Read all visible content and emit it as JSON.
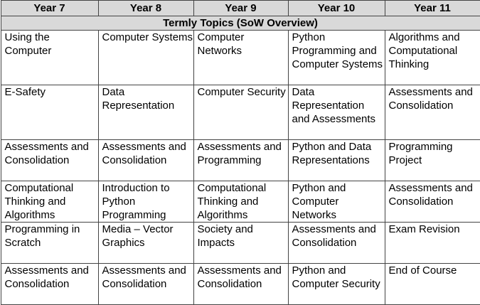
{
  "headers": [
    "Year 7",
    "Year 8",
    "Year 9",
    "Year 10",
    "Year 11"
  ],
  "subtitle": "Termly Topics (SoW Overview)",
  "rows": [
    [
      "Using the Computer",
      "Computer Systems",
      "Computer Networks",
      "Python Programming and Computer Systems",
      "Algorithms and Computational Thinking"
    ],
    [
      "E-Safety",
      "Data Representation",
      "Computer Security",
      "Data Representation and Assessments",
      "Assessments and Consolidation"
    ],
    [
      "Assessments and Consolidation",
      "Assessments and Consolidation",
      "Assessments and Programming",
      "Python and Data Representations",
      "Programming Project"
    ],
    [
      "Computational Thinking and Algorithms",
      "Introduction to Python Programming",
      "Computational Thinking and Algorithms",
      "Python and Computer Networks",
      "Assessments and Consolidation"
    ],
    [
      "Programming in Scratch",
      "Media – Vector Graphics",
      "Society and Impacts",
      "Assessments and Consolidation",
      "Exam Revision"
    ],
    [
      "Assessments and Consolidation",
      "Assessments and Consolidation",
      "Assessments and Consolidation",
      "Python and Computer Security",
      "End of Course"
    ]
  ]
}
